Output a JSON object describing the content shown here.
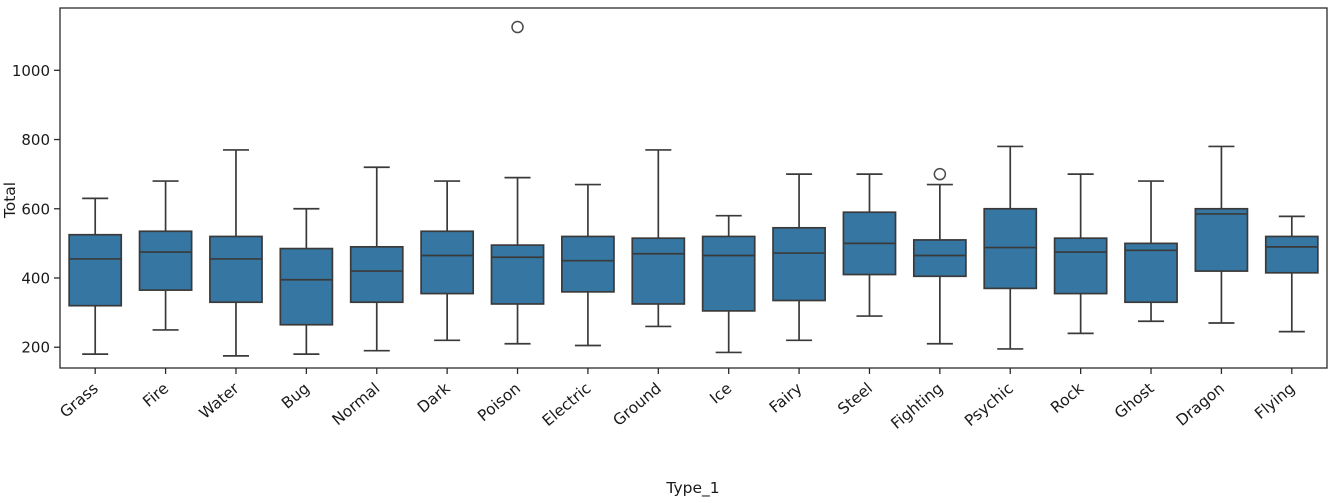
{
  "chart_data": {
    "type": "boxplot",
    "title": "",
    "xlabel": "Type_1",
    "ylabel": "Total",
    "ylim": [
      140,
      1180
    ],
    "yticks": [
      200,
      400,
      600,
      800,
      1000
    ],
    "grid": false,
    "legend": false,
    "box_fill": "#3576a2",
    "box_stroke": "#3a3a3a",
    "outlier_stroke": "#4a4a4a",
    "frame_color": "#2b2b2b",
    "categories": [
      "Grass",
      "Fire",
      "Water",
      "Bug",
      "Normal",
      "Dark",
      "Poison",
      "Electric",
      "Ground",
      "Ice",
      "Fairy",
      "Steel",
      "Fighting",
      "Psychic",
      "Rock",
      "Ghost",
      "Dragon",
      "Flying"
    ],
    "stats": [
      {
        "label": "Grass",
        "whislo": 180,
        "q1": 320,
        "med": 455,
        "q3": 525,
        "whishi": 630,
        "outliers": []
      },
      {
        "label": "Fire",
        "whislo": 250,
        "q1": 365,
        "med": 475,
        "q3": 535,
        "whishi": 680,
        "outliers": []
      },
      {
        "label": "Water",
        "whislo": 175,
        "q1": 330,
        "med": 455,
        "q3": 520,
        "whishi": 770,
        "outliers": []
      },
      {
        "label": "Bug",
        "whislo": 180,
        "q1": 265,
        "med": 395,
        "q3": 485,
        "whishi": 600,
        "outliers": []
      },
      {
        "label": "Normal",
        "whislo": 190,
        "q1": 330,
        "med": 420,
        "q3": 490,
        "whishi": 720,
        "outliers": []
      },
      {
        "label": "Dark",
        "whislo": 220,
        "q1": 355,
        "med": 465,
        "q3": 535,
        "whishi": 680,
        "outliers": []
      },
      {
        "label": "Poison",
        "whislo": 210,
        "q1": 325,
        "med": 460,
        "q3": 495,
        "whishi": 690,
        "outliers": [
          1125
        ]
      },
      {
        "label": "Electric",
        "whislo": 205,
        "q1": 360,
        "med": 450,
        "q3": 520,
        "whishi": 670,
        "outliers": []
      },
      {
        "label": "Ground",
        "whislo": 260,
        "q1": 325,
        "med": 470,
        "q3": 515,
        "whishi": 770,
        "outliers": []
      },
      {
        "label": "Ice",
        "whislo": 185,
        "q1": 305,
        "med": 465,
        "q3": 520,
        "whishi": 580,
        "outliers": []
      },
      {
        "label": "Fairy",
        "whislo": 220,
        "q1": 335,
        "med": 472,
        "q3": 545,
        "whishi": 700,
        "outliers": []
      },
      {
        "label": "Steel",
        "whislo": 290,
        "q1": 410,
        "med": 500,
        "q3": 590,
        "whishi": 700,
        "outliers": []
      },
      {
        "label": "Fighting",
        "whislo": 210,
        "q1": 405,
        "med": 465,
        "q3": 510,
        "whishi": 670,
        "outliers": [
          700
        ]
      },
      {
        "label": "Psychic",
        "whislo": 195,
        "q1": 370,
        "med": 488,
        "q3": 600,
        "whishi": 780,
        "outliers": []
      },
      {
        "label": "Rock",
        "whislo": 240,
        "q1": 355,
        "med": 475,
        "q3": 515,
        "whishi": 700,
        "outliers": []
      },
      {
        "label": "Ghost",
        "whislo": 275,
        "q1": 330,
        "med": 480,
        "q3": 500,
        "whishi": 680,
        "outliers": []
      },
      {
        "label": "Dragon",
        "whislo": 270,
        "q1": 420,
        "med": 585,
        "q3": 600,
        "whishi": 780,
        "outliers": []
      },
      {
        "label": "Flying",
        "whislo": 245,
        "q1": 415,
        "med": 490,
        "q3": 520,
        "whishi": 578,
        "outliers": []
      }
    ]
  }
}
